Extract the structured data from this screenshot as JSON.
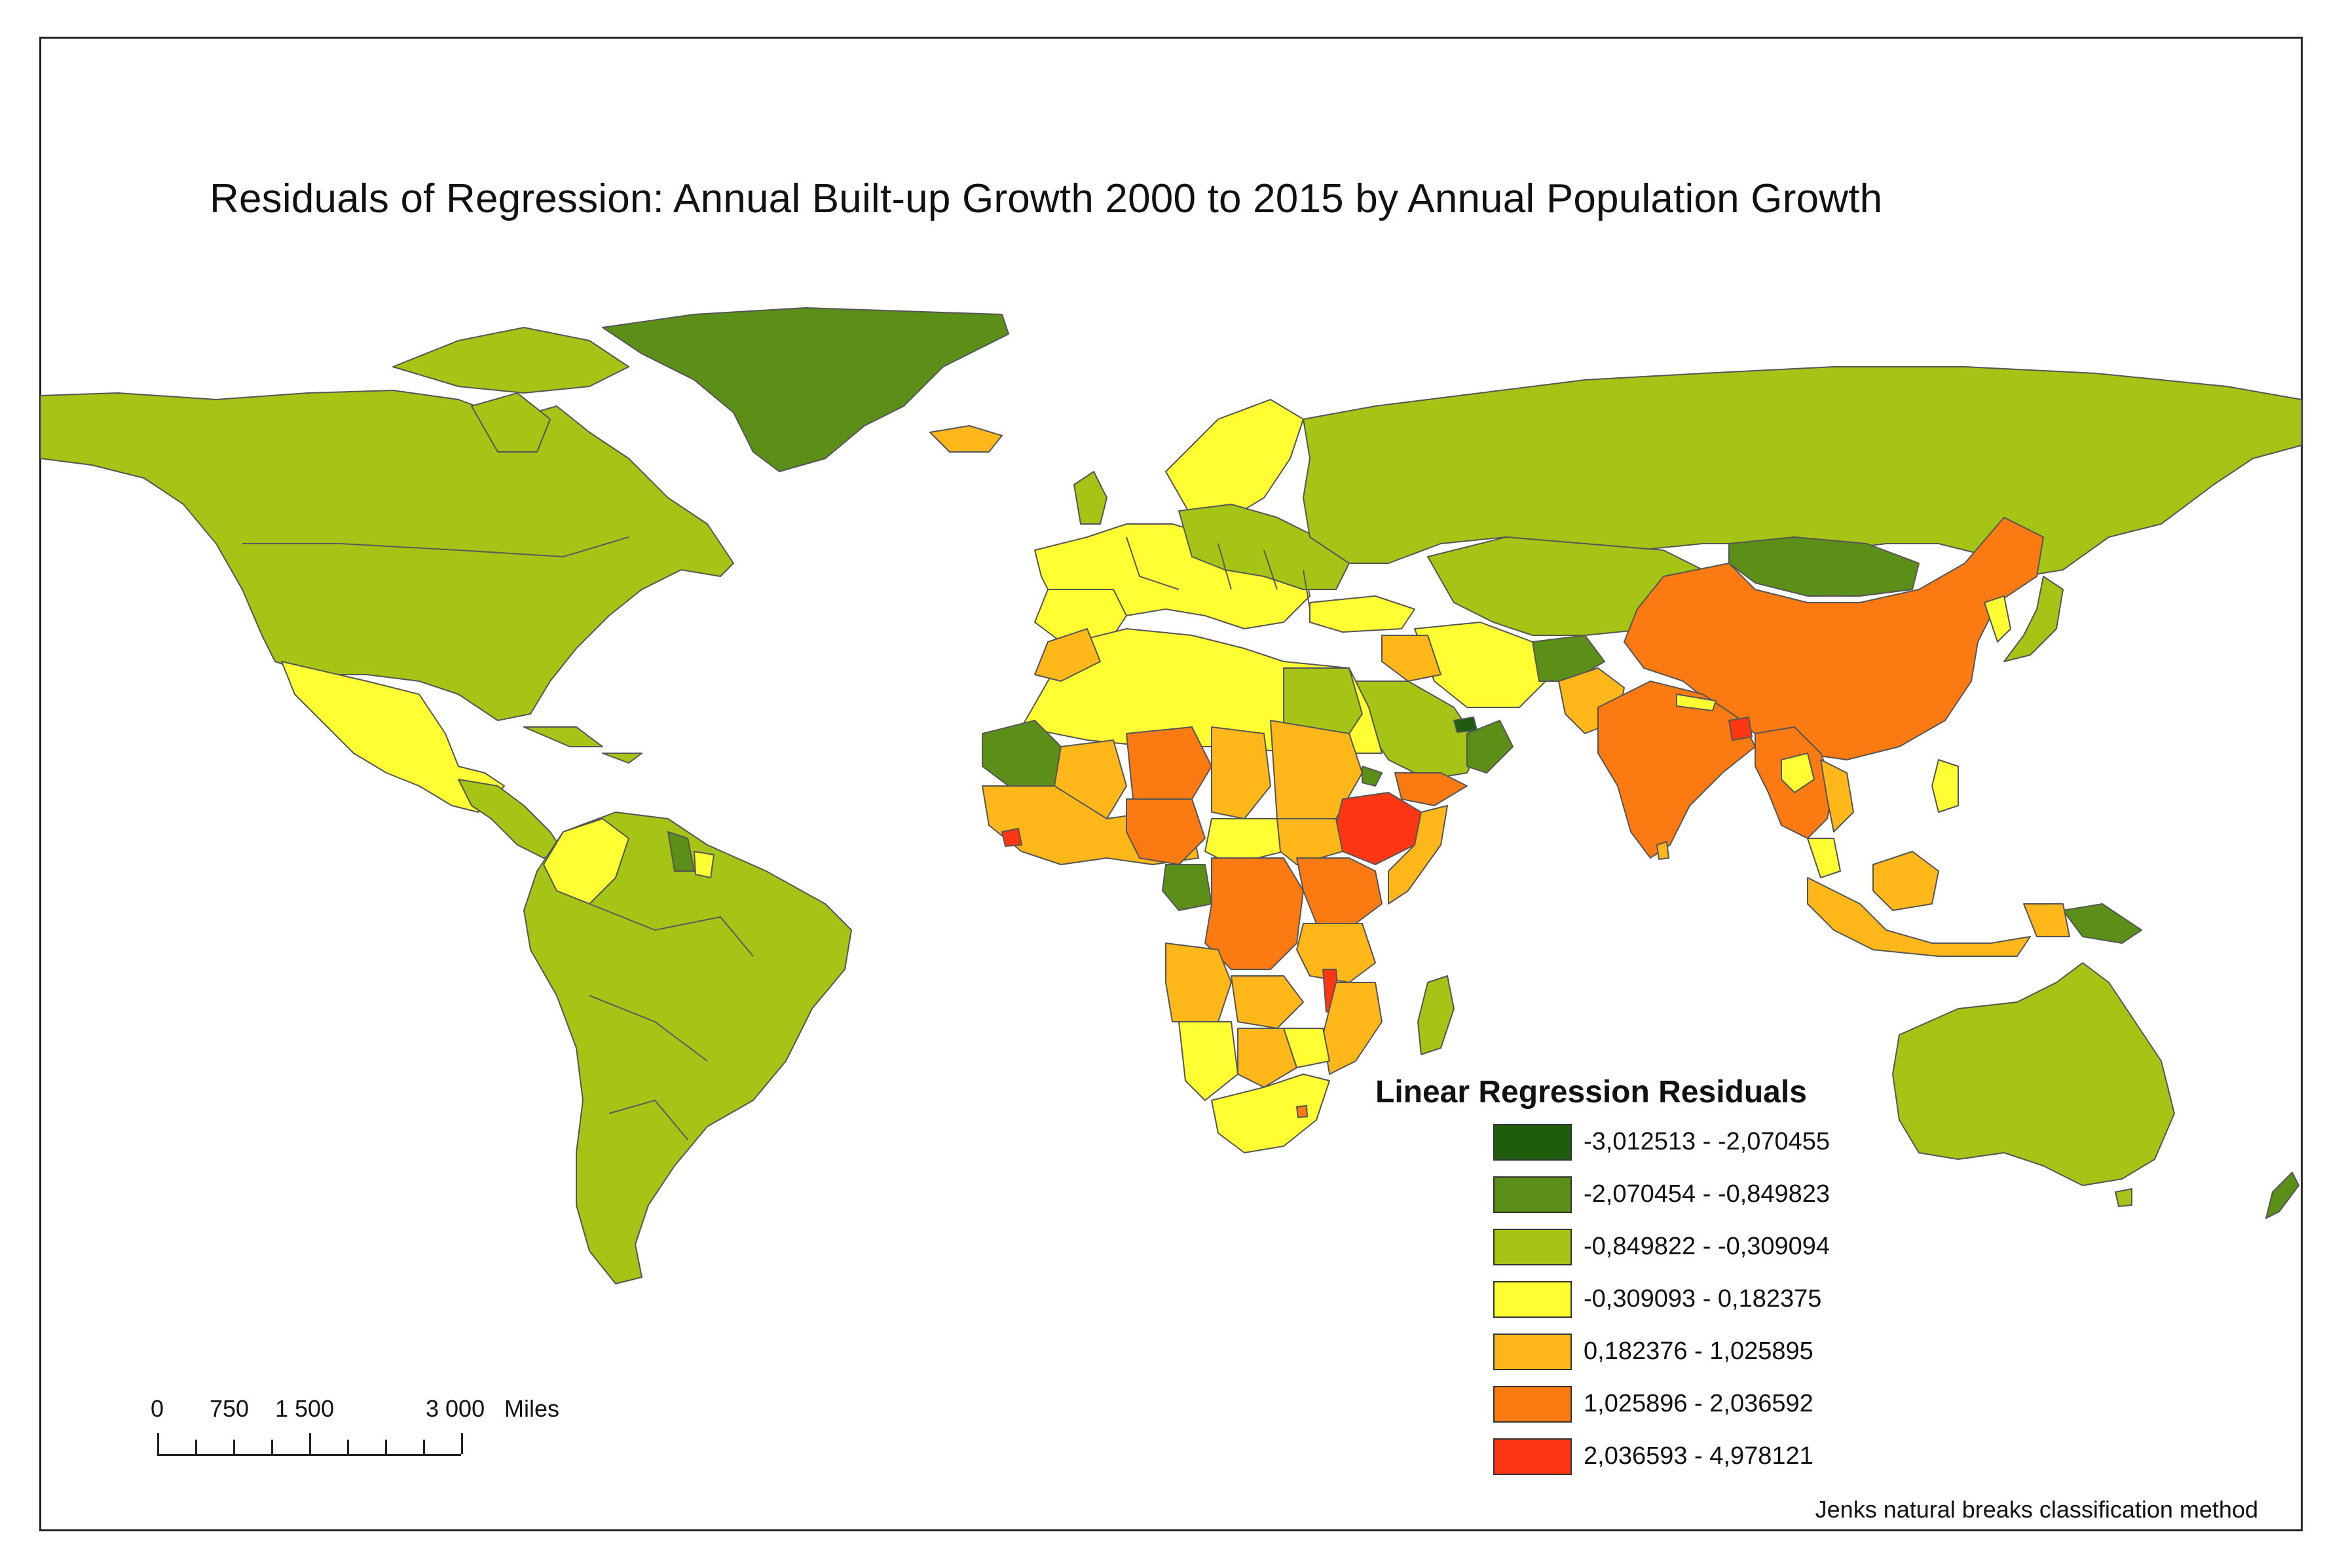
{
  "map": {
    "title": "Residuals of Regression: Annual Built-up Growth 2000 to 2015 by Annual Population Growth",
    "projection": "world",
    "background_color": "#ffffff",
    "border_color": "#555555"
  },
  "legend": {
    "title": "Linear Regression Residuals",
    "classes": [
      {
        "label": "-3,012513 - -2,070455",
        "color": "#1f5c0d"
      },
      {
        "label": "-2,070454 - -0,849823",
        "color": "#5b8f17"
      },
      {
        "label": "-0,849822 - -0,309094",
        "color": "#a5c416"
      },
      {
        "label": "-0,309093 - 0,182375",
        "color": "#ffff33"
      },
      {
        "label": "0,182376 - 1,025895",
        "color": "#ffb71a"
      },
      {
        "label": "1,025896 - 2,036592",
        "color": "#fc7a12"
      },
      {
        "label": "2,036593 - 4,978121",
        "color": "#ff3614"
      }
    ]
  },
  "scale_bar": {
    "labels": [
      "0",
      "750",
      "1 500",
      "3 000",
      "Miles"
    ],
    "max_value": 3000,
    "unit": "Miles"
  },
  "note": "Jenks natural breaks classification method",
  "colors": {
    "class_1": "#1f5c0d",
    "class_2": "#5b8f17",
    "class_3": "#a5c416",
    "class_4": "#ffff33",
    "class_5": "#ffb71a",
    "class_6": "#fc7a12",
    "class_7": "#ff3614"
  }
}
